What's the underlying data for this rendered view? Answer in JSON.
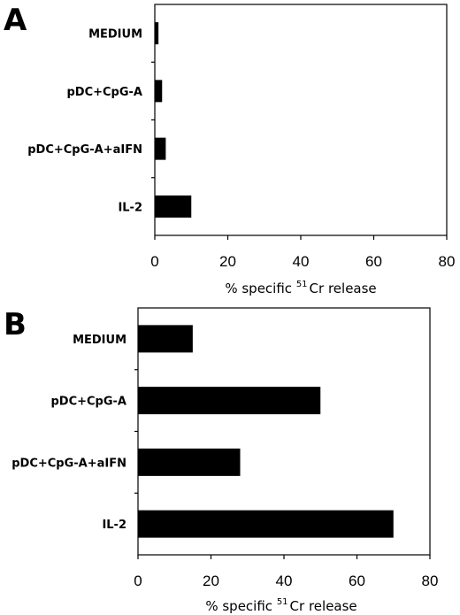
{
  "chart_data": [
    {
      "panel": "A",
      "type": "bar",
      "orientation": "horizontal",
      "categories": [
        "MEDIUM",
        "pDC+CpG-A",
        "pDC+CpG-A+aIFN",
        "IL-2"
      ],
      "values": [
        1,
        2,
        3,
        10
      ],
      "xlabel_prefix": "% specific ",
      "xlabel_sup": "51",
      "xlabel_suffix": "Cr release",
      "xlim": [
        0,
        80
      ],
      "xticks": [
        "0",
        "20",
        "40",
        "60",
        "80"
      ],
      "bar_color": "#000000",
      "grid": false,
      "frame": "box"
    },
    {
      "panel": "B",
      "type": "bar",
      "orientation": "horizontal",
      "categories": [
        "MEDIUM",
        "pDC+CpG-A",
        "pDC+CpG-A+aIFN",
        "IL-2"
      ],
      "values": [
        15,
        50,
        28,
        70
      ],
      "xlabel_prefix": "% specific ",
      "xlabel_sup": "51",
      "xlabel_suffix": "Cr release",
      "xlim": [
        0,
        80
      ],
      "xticks": [
        "0",
        "20",
        "40",
        "60",
        "80"
      ],
      "bar_color": "#000000",
      "grid": false,
      "frame": "box"
    }
  ]
}
